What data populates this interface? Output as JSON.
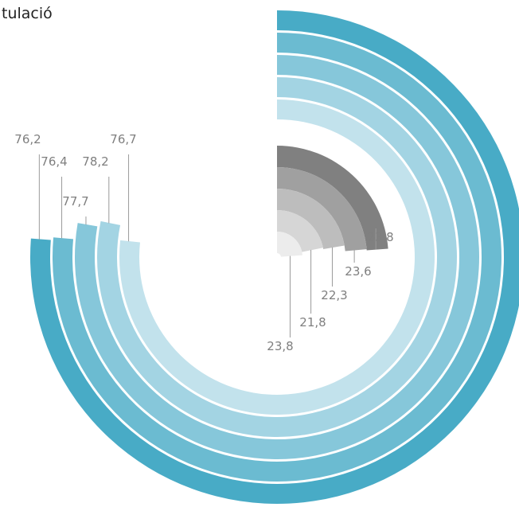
{
  "title": "tulació",
  "chart_data": {
    "type": "radial-bar",
    "max": 100,
    "title": "tulació",
    "groups": [
      {
        "colors": [
          "#48abc6",
          "#6bbbd1",
          "#86c7da",
          "#a3d4e3",
          "#c2e2ec"
        ],
        "values": [
          76.2,
          76.4,
          77.7,
          78.2,
          76.7
        ],
        "labels": [
          "76,2",
          "76,4",
          "77,7",
          "78,2",
          "76,7"
        ]
      },
      {
        "colors": [
          "#808080",
          "#a0a0a0",
          "#bdbdbd",
          "#d6d6d6",
          "#ececec"
        ],
        "values": [
          23.8,
          23.6,
          22.3,
          21.8,
          23.8
        ],
        "labels": [
          "23,8",
          "23,6",
          "22,3",
          "21,8",
          "23,8"
        ]
      }
    ]
  }
}
